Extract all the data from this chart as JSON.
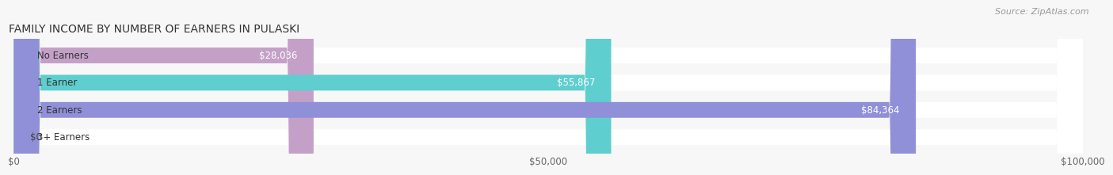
{
  "title": "FAMILY INCOME BY NUMBER OF EARNERS IN PULASKI",
  "source": "Source: ZipAtlas.com",
  "categories": [
    "No Earners",
    "1 Earner",
    "2 Earners",
    "3+ Earners"
  ],
  "values": [
    28036,
    55867,
    84364,
    0
  ],
  "labels": [
    "$28,036",
    "$55,867",
    "$84,364",
    "$0"
  ],
  "bar_colors": [
    "#c4a0c8",
    "#5ecece",
    "#9090d8",
    "#f4a0b8"
  ],
  "xmax": 100000,
  "xticks": [
    0,
    50000,
    100000
  ],
  "xticklabels": [
    "$0",
    "$50,000",
    "$100,000"
  ],
  "title_fontsize": 10,
  "source_fontsize": 8,
  "tick_fontsize": 8.5,
  "label_fontsize": 8.5,
  "category_fontsize": 8.5,
  "bar_height": 0.58,
  "background_color": "#f7f7f7"
}
